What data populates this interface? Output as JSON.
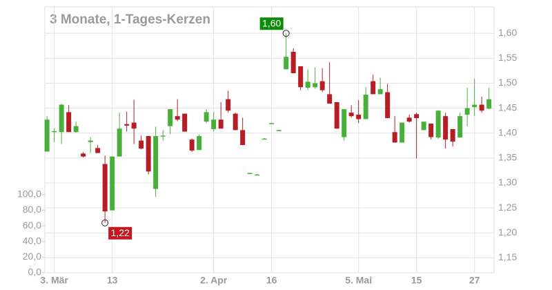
{
  "chart_data": {
    "type": "candlestick",
    "title": "3 Monate, 1-Tages-Kerzen",
    "x": [
      0,
      1,
      2,
      3,
      4,
      5,
      6,
      7,
      8,
      9,
      10,
      11,
      12,
      13,
      14,
      15,
      16,
      17,
      18,
      19,
      20,
      21,
      22,
      23,
      24,
      25,
      26,
      27,
      28,
      29,
      30,
      31,
      32,
      33,
      34,
      35,
      36,
      37,
      38,
      39,
      40,
      41,
      42,
      43,
      44,
      45,
      46,
      47,
      48,
      49,
      50,
      51,
      52,
      53,
      54,
      55,
      56,
      57,
      58,
      59,
      60,
      61
    ],
    "open": [
      1.363,
      1.403,
      1.402,
      1.442,
      1.402,
      1.359,
      1.382,
      1.37,
      1.338,
      1.245,
      1.353,
      1.418,
      1.421,
      1.385,
      1.394,
      1.288,
      1.393,
      1.414,
      1.434,
      1.439,
      1.387,
      1.366,
      1.423,
      1.408,
      1.427,
      1.468,
      1.439,
      1.406,
      1.32,
      1.317,
      1.389,
      1.42,
      1.406,
      1.528,
      1.563,
      1.534,
      1.491,
      1.492,
      1.504,
      1.478,
      1.462,
      1.392,
      1.441,
      1.437,
      1.428,
      1.504,
      1.478,
      1.482,
      1.402,
      1.381,
      1.431,
      1.438,
      1.406,
      1.419,
      1.391,
      1.434,
      1.408,
      1.391,
      1.437,
      1.452,
      1.457,
      1.449
    ],
    "high": [
      1.434,
      1.41,
      1.459,
      1.456,
      1.423,
      1.362,
      1.392,
      1.376,
      1.355,
      1.353,
      1.441,
      1.443,
      1.467,
      1.395,
      1.394,
      1.413,
      1.406,
      1.448,
      1.468,
      1.439,
      1.389,
      1.397,
      1.448,
      1.442,
      1.462,
      1.485,
      1.441,
      1.431,
      1.321,
      1.318,
      1.39,
      1.421,
      1.407,
      1.6,
      1.57,
      1.534,
      1.528,
      1.532,
      1.53,
      1.542,
      1.462,
      1.448,
      1.456,
      1.466,
      1.492,
      1.517,
      1.511,
      1.499,
      1.434,
      1.421,
      1.437,
      1.441,
      1.423,
      1.419,
      1.446,
      1.441,
      1.408,
      1.441,
      1.491,
      1.509,
      1.473,
      1.491
    ],
    "low": [
      1.363,
      1.382,
      1.378,
      1.402,
      1.401,
      1.351,
      1.36,
      1.36,
      1.22,
      1.245,
      1.353,
      1.403,
      1.378,
      1.367,
      1.317,
      1.272,
      1.385,
      1.398,
      1.424,
      1.403,
      1.362,
      1.366,
      1.42,
      1.403,
      1.409,
      1.441,
      1.406,
      1.376,
      1.319,
      1.316,
      1.388,
      1.419,
      1.405,
      1.528,
      1.52,
      1.486,
      1.486,
      1.489,
      1.482,
      1.459,
      1.409,
      1.385,
      1.431,
      1.42,
      1.428,
      1.478,
      1.478,
      1.43,
      1.381,
      1.381,
      1.421,
      1.349,
      1.406,
      1.387,
      1.388,
      1.369,
      1.373,
      1.391,
      1.413,
      1.434,
      1.441,
      1.448
    ],
    "close": [
      1.427,
      1.404,
      1.457,
      1.402,
      1.414,
      1.353,
      1.385,
      1.36,
      1.243,
      1.353,
      1.409,
      1.415,
      1.409,
      1.369,
      1.323,
      1.394,
      1.395,
      1.448,
      1.427,
      1.403,
      1.365,
      1.394,
      1.442,
      1.427,
      1.409,
      1.445,
      1.406,
      1.376,
      1.32,
      1.317,
      1.389,
      1.42,
      1.406,
      1.553,
      1.52,
      1.492,
      1.503,
      1.5,
      1.486,
      1.459,
      1.409,
      1.448,
      1.434,
      1.428,
      1.477,
      1.478,
      1.488,
      1.43,
      1.381,
      1.421,
      1.423,
      1.43,
      1.423,
      1.392,
      1.445,
      1.387,
      1.383,
      1.434,
      1.45,
      1.457,
      1.445,
      1.468
    ],
    "up_color": "#48b03a",
    "down_color": "#b51e24",
    "xlim": [
      -0.3,
      61.7
    ],
    "xticks": [
      {
        "value": 1,
        "label": "3. Mär"
      },
      {
        "value": 9,
        "label": "13"
      },
      {
        "value": 23,
        "label": "2. Apr"
      },
      {
        "value": 31,
        "label": "16"
      },
      {
        "value": 43,
        "label": "5. Mai"
      },
      {
        "value": 51,
        "label": "15"
      },
      {
        "value": 59,
        "label": "27"
      }
    ],
    "ylim": [
      1.12,
      1.653
    ],
    "yticks": [
      {
        "value": 1.15,
        "label": "1,15"
      },
      {
        "value": 1.2,
        "label": "1,20"
      },
      {
        "value": 1.25,
        "label": "1,25"
      },
      {
        "value": 1.3,
        "label": "1,30"
      },
      {
        "value": 1.35,
        "label": "1,35"
      },
      {
        "value": 1.4,
        "label": "1,40"
      },
      {
        "value": 1.45,
        "label": "1,45"
      },
      {
        "value": 1.5,
        "label": "1,50"
      },
      {
        "value": 1.55,
        "label": "1,55"
      },
      {
        "value": 1.6,
        "label": "1,60"
      }
    ],
    "y2lim": [
      0,
      340
    ],
    "y2ticks": [
      {
        "value": 0,
        "label": "0,0"
      },
      {
        "value": 20,
        "label": "20,0"
      },
      {
        "value": 40,
        "label": "40,0"
      },
      {
        "value": 60,
        "label": "60,0"
      },
      {
        "value": 80,
        "label": "80,0"
      },
      {
        "value": 100,
        "label": "100,0"
      }
    ],
    "grid": true,
    "annotations": [
      {
        "label": "1,60",
        "x": 33,
        "y": 1.6,
        "color": "#0a8c0a"
      },
      {
        "label": "1,22",
        "x": 8,
        "y": 1.22,
        "color": "#c8141c"
      }
    ]
  }
}
